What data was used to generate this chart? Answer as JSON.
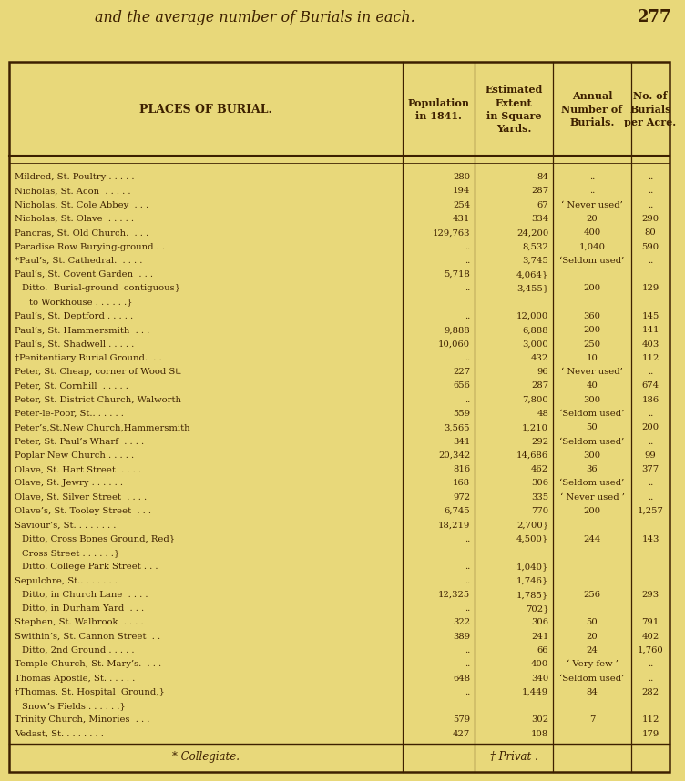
{
  "page_header": "and the average number of Burials in each.",
  "page_number": "277",
  "bg_color": "#E8D87A",
  "border_color": "#3d2000",
  "col_headers": [
    "PLACES OF BURIAL.",
    "Population\nin 1841.",
    "Estimated\nExtent\nin Square\nYards.",
    "Annual\nNumber of\nBurials.",
    "No. of\nBurials\nper Acre."
  ],
  "footnote_left": "* Collegiate.",
  "footnote_right": "† Privat .",
  "rows": [
    [
      "Mildred, St. Poultry . . . . .",
      "280",
      "84",
      "..",
      ".."
    ],
    [
      "Nicholas, St. Acon  . . . . .",
      "194",
      "287",
      "..",
      ".."
    ],
    [
      "Nicholas, St. Cole Abbey  . . .",
      "254",
      "67",
      "‘ Never used’",
      ".."
    ],
    [
      "Nicholas, St. Olave  . . . . .",
      "431",
      "334",
      "20",
      "290"
    ],
    [
      "Pancras, St. Old Church.  . . .",
      "129,763",
      "24,200",
      "400",
      "80"
    ],
    [
      "Paradise Row Burying-ground . .",
      "..",
      "8,532",
      "1,040",
      "590"
    ],
    [
      "*Paul’s, St. Cathedral.  . . . .",
      "..",
      "3,745",
      "‘Seldom used’",
      ".."
    ],
    [
      "Paul’s, St. Covent Garden  . . .",
      "5,718",
      "4,064}",
      "",
      ""
    ],
    [
      "  Ditto.  Burial-ground  contiguous}",
      "..",
      "3,455}",
      "200",
      "129"
    ],
    [
      "    to Workhouse . . . . . .}",
      "",
      "",
      "",
      ""
    ],
    [
      "Paul’s, St. Deptford . . . . .",
      "..",
      "12,000",
      "360",
      "145"
    ],
    [
      "Paul’s, St. Hammersmith  . . .",
      "9,888",
      "6,888",
      "200",
      "141"
    ],
    [
      "Paul’s, St. Shadwell . . . . .",
      "10,060",
      "3,000",
      "250",
      "403"
    ],
    [
      "†Penitentiary Burial Ground.  . .",
      "..",
      "432",
      "10",
      "112"
    ],
    [
      "Peter, St. Cheap, corner of Wood St.",
      "227",
      "96",
      "‘ Never used’",
      ".."
    ],
    [
      "Peter, St. Cornhill  . . . . .",
      "656",
      "287",
      "40",
      "674"
    ],
    [
      "Peter, St. District Church, Walworth",
      "..",
      "7,800",
      "300",
      "186"
    ],
    [
      "Peter-le-Poor, St.. . . . . .",
      "559",
      "48",
      "‘Seldom used’",
      ".."
    ],
    [
      "Peter’s,St.New Church,Hammersmith",
      "3,565",
      "1,210",
      "50",
      "200"
    ],
    [
      "Peter, St. Paul’s Wharf  . . . .",
      "341",
      "292",
      "‘Seldom used’",
      ".."
    ],
    [
      "Poplar New Church . . . . .",
      "20,342",
      "14,686",
      "300",
      "99"
    ],
    [
      "Olave, St. Hart Street  . . . .",
      "816",
      "462",
      "36",
      "377"
    ],
    [
      "Olave, St. Jewry . . . . . .",
      "168",
      "306",
      "‘Seldom used’",
      ".."
    ],
    [
      "Olave, St. Silver Street  . . . .",
      "972",
      "335",
      "‘ Never used ’",
      ".."
    ],
    [
      "Olave’s, St. Tooley Street  . . .",
      "6,745",
      "770",
      "200",
      "1,257"
    ],
    [
      "Saviour’s, St. . . . . . . .",
      "18,219",
      "2,700}",
      "",
      ""
    ],
    [
      "  Ditto, Cross Bones Ground, Red}",
      "..",
      "4,500}",
      "244",
      "143"
    ],
    [
      "  Cross Street . . . . . .}",
      "",
      "",
      "",
      ""
    ],
    [
      "  Ditto. College Park Street . . .",
      "..",
      "1,040}",
      "",
      ""
    ],
    [
      "Sepulchre, St.. . . . . . .",
      "..",
      "1,746}",
      "",
      ""
    ],
    [
      "  Ditto, in Church Lane  . . . .",
      "12,325",
      "1,785}",
      "256",
      "293"
    ],
    [
      "  Ditto, in Durham Yard  . . .",
      "..",
      "702}",
      "",
      ""
    ],
    [
      "Stephen, St. Walbrook  . . . .",
      "322",
      "306",
      "50",
      "791"
    ],
    [
      "Swithin’s, St. Cannon Street  . .",
      "389",
      "241",
      "20",
      "402"
    ],
    [
      "  Ditto, 2nd Ground . . . . .",
      "..",
      "66",
      "24",
      "1,760"
    ],
    [
      "Temple Church, St. Mary’s.  . . .",
      "..",
      "400",
      "‘ Very few ’",
      ".."
    ],
    [
      "Thomas Apostle, St. . . . . .",
      "648",
      "340",
      "‘Seldom used’",
      ".."
    ],
    [
      "†Thomas, St. Hospital  Ground,}",
      "..",
      "1,449",
      "84",
      "282"
    ],
    [
      "  Snow’s Fields . . . . . .}",
      "",
      "",
      "",
      ""
    ],
    [
      "Trinity Church, Minories  . . .",
      "579",
      "302",
      "7",
      "112"
    ],
    [
      "Vedast, St. . . . . . . .",
      "427",
      "108",
      "",
      "179"
    ]
  ]
}
